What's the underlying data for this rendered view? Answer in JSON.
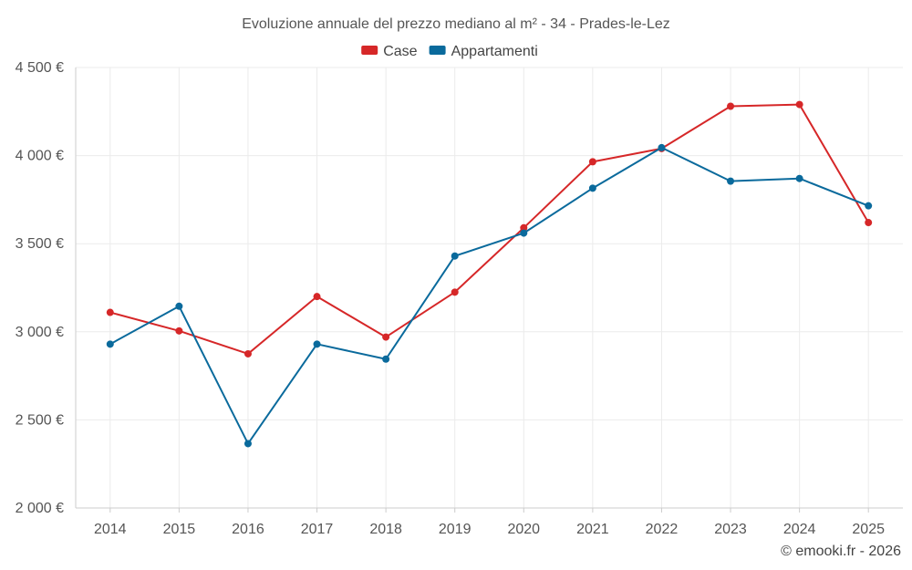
{
  "chart_data": {
    "type": "line",
    "title": "Evoluzione annuale del prezzo mediano al m² - 34 - Prades-le-Lez",
    "categories": [
      "2014",
      "2015",
      "2016",
      "2017",
      "2018",
      "2019",
      "2020",
      "2021",
      "2022",
      "2023",
      "2024",
      "2025"
    ],
    "series": [
      {
        "name": "Case",
        "color": "#d62728",
        "values": [
          3110,
          3005,
          2875,
          3200,
          2970,
          3225,
          3590,
          3965,
          4040,
          4280,
          4290,
          3620
        ]
      },
      {
        "name": "Appartamenti",
        "color": "#0a6a9c",
        "values": [
          2930,
          3145,
          2365,
          2930,
          2845,
          3430,
          3560,
          3815,
          4045,
          3855,
          3870,
          3715
        ]
      }
    ],
    "ylim": [
      2000,
      4500
    ],
    "yticks": [
      2000,
      2500,
      3000,
      3500,
      4000,
      4500
    ],
    "ytick_labels": [
      "2 000 €",
      "2 500 €",
      "3 000 €",
      "3 500 €",
      "4 000 €",
      "4 500 €"
    ],
    "xlabel": "",
    "ylabel": "",
    "legend_position": "top-center",
    "grid": true
  },
  "credit": "© emooki.fr - 2026"
}
